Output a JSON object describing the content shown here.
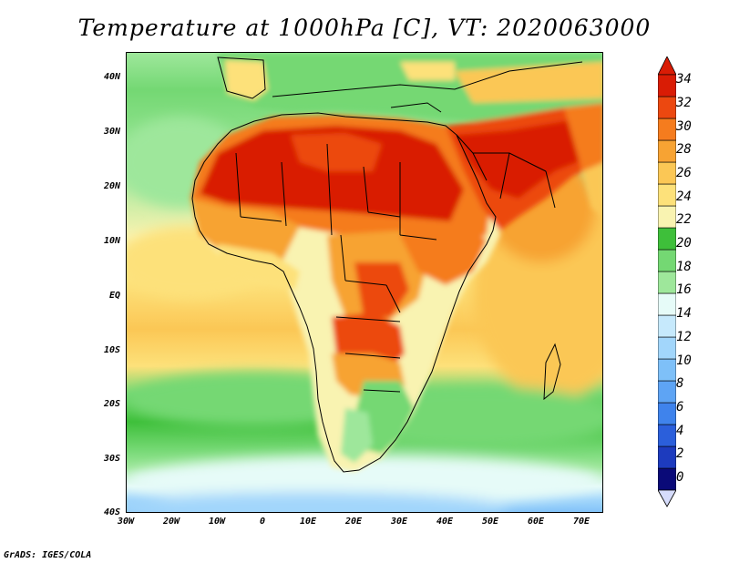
{
  "title": "Temperature at 1000hPa [C], VT: 2020063000",
  "credit": "GrADS: IGES/COLA",
  "map": {
    "projection": "latlon",
    "lon_range": [
      -30,
      75
    ],
    "lat_range": [
      -40,
      45
    ],
    "lat_ticks": [
      "40N",
      "30N",
      "20N",
      "10N",
      "EQ",
      "10S",
      "20S",
      "30S",
      "40S"
    ],
    "lon_ticks": [
      "30W",
      "20W",
      "10W",
      "0",
      "10E",
      "20E",
      "30E",
      "40E",
      "50E",
      "60E",
      "70E"
    ]
  },
  "colorbar": {
    "labels": [
      "34",
      "32",
      "30",
      "28",
      "26",
      "24",
      "22",
      "20",
      "18",
      "16",
      "14",
      "12",
      "10",
      "8",
      "6",
      "4",
      "2",
      "0"
    ],
    "colors": [
      "#0a0a78",
      "#1d3bbe",
      "#2b5fdb",
      "#3f83ec",
      "#5ea4f4",
      "#7ec0f8",
      "#a2d6fb",
      "#c6e9fc",
      "#e6fbf8",
      "#9ee79b",
      "#74d873",
      "#3ebf3a",
      "#f9f3b1",
      "#fde17a",
      "#fbc755",
      "#f7a333",
      "#f57c1e",
      "#ec4810",
      "#d91c05"
    ],
    "over_color": "#d91c05",
    "under_color": "#d6dcfb"
  }
}
